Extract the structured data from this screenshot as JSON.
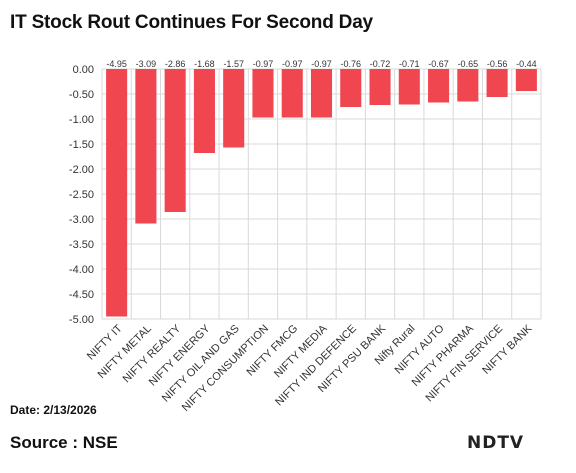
{
  "header": {
    "title": "IT Stock Rout Continues For Second Day"
  },
  "footer": {
    "date": "Date: 2/13/2026",
    "source": "Source : NSE",
    "logo_text": "NDTV"
  },
  "colors": {
    "bar": "#f0464f",
    "grid": "#d9d9d9",
    "text": "#333333"
  },
  "chart_data": {
    "type": "bar",
    "title": "IT Stock Rout Continues For Second Day",
    "xlabel": "",
    "ylabel": "",
    "ylim": [
      -5.0,
      0.0
    ],
    "grid": true,
    "y_ticks": [
      "0.00",
      "-0.50",
      "-1.00",
      "-1.50",
      "-2.00",
      "-2.50",
      "-3.00",
      "-3.50",
      "-4.00",
      "-4.50",
      "-5.00"
    ],
    "categories": [
      "NIFTY IT",
      "NIFTY METAL",
      "NIFTY REALTY",
      "NIFTY ENERGY",
      "NIFTY OIL AND GAS",
      "NIFTY CONSUMPTION",
      "NIFTY FMCG",
      "NIFTY MEDIA",
      "NIFTY IND DEFENCE",
      "NIFTY PSU BANK",
      "Nifty Rural",
      "NIFTY AUTO",
      "NIFTY PHARMA",
      "NIFTY FIN SERVICE",
      "NIFTY BANK"
    ],
    "values": [
      -4.95,
      -3.09,
      -2.86,
      -1.68,
      -1.57,
      -0.97,
      -0.97,
      -0.97,
      -0.76,
      -0.72,
      -0.71,
      -0.67,
      -0.65,
      -0.56,
      -0.44
    ],
    "data_labels": [
      "-4.95",
      "-3.09",
      "-2.86",
      "-1.68",
      "-1.57",
      "-0.97",
      "-0.97",
      "-0.97",
      "-0.76",
      "-0.72",
      "-0.71",
      "-0.67",
      "-0.65",
      "-0.56",
      "-0.44"
    ]
  }
}
